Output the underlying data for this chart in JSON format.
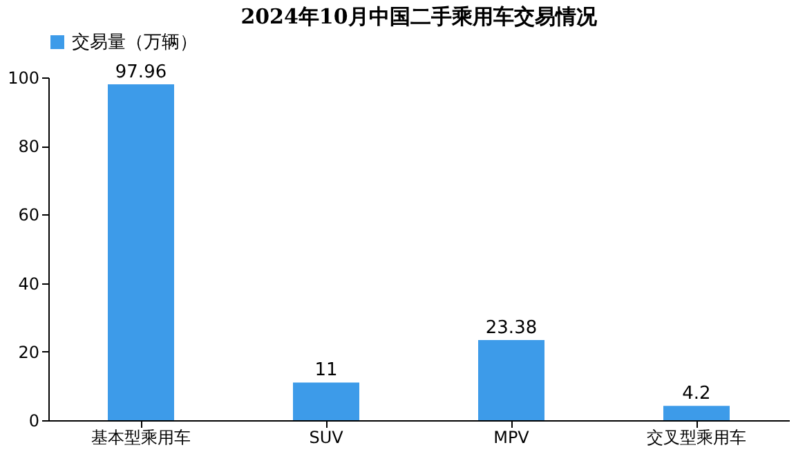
{
  "chart_data": {
    "type": "bar",
    "title": "2024年10月中国二手乘用车交易情况",
    "categories": [
      "基本型乘用车",
      "SUV",
      "MPV",
      "交叉型乘用车"
    ],
    "series": [
      {
        "name": "交易量（万辆）",
        "color": "#3d9be9",
        "values": [
          97.96,
          11,
          23.38,
          4.2
        ]
      }
    ],
    "ylim": [
      0,
      100
    ],
    "yticks": [
      0,
      20,
      40,
      60,
      80,
      100
    ],
    "data_labels": true,
    "legend": "top",
    "grid": false
  }
}
